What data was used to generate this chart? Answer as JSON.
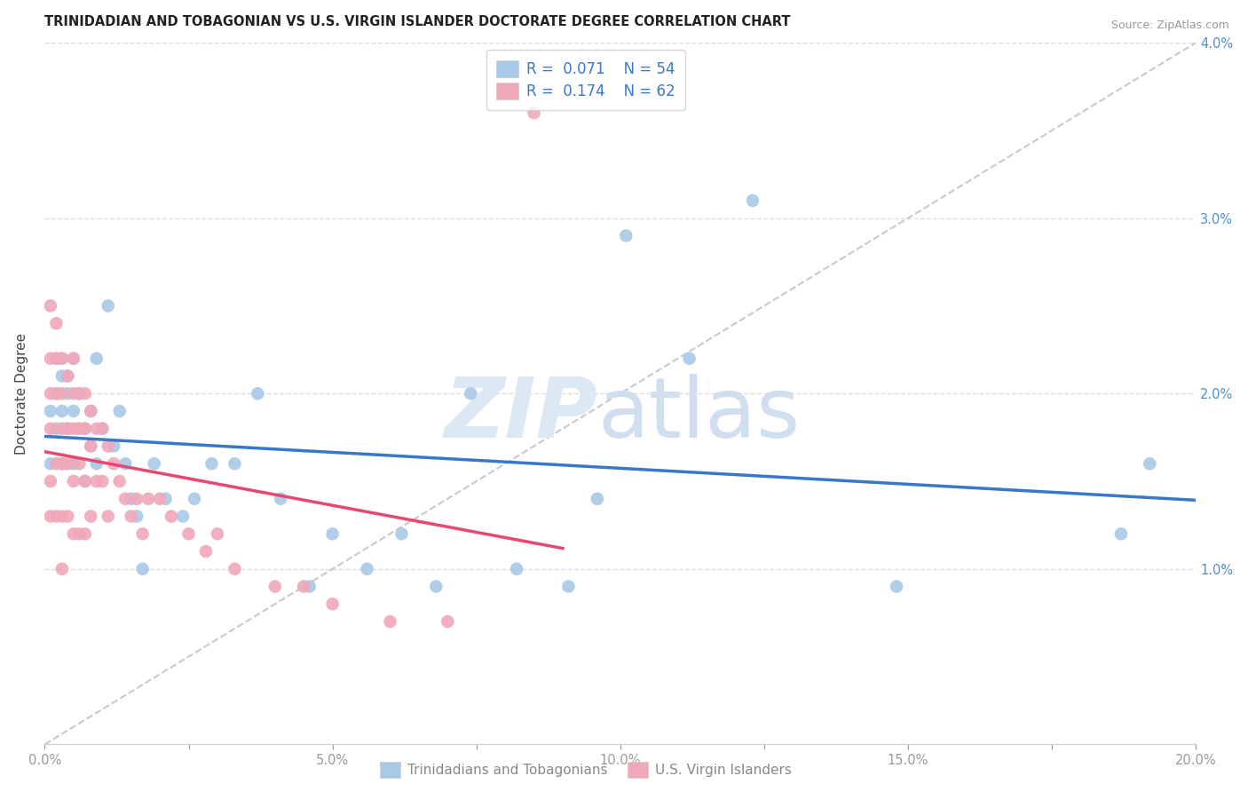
{
  "title": "TRINIDADIAN AND TOBAGONIAN VS U.S. VIRGIN ISLANDER DOCTORATE DEGREE CORRELATION CHART",
  "source": "Source: ZipAtlas.com",
  "ylabel": "Doctorate Degree",
  "xlim": [
    0,
    0.2
  ],
  "ylim": [
    0,
    0.04
  ],
  "xtick_labels": [
    "0.0%",
    "",
    "5.0%",
    "",
    "10.0%",
    "",
    "15.0%",
    "",
    "20.0%"
  ],
  "xtick_vals": [
    0.0,
    0.025,
    0.05,
    0.075,
    0.1,
    0.125,
    0.15,
    0.175,
    0.2
  ],
  "ytick_labels_right": [
    "4.0%",
    "3.0%",
    "2.0%",
    "1.0%",
    ""
  ],
  "ytick_vals": [
    0.04,
    0.03,
    0.02,
    0.01,
    0.0
  ],
  "legend_blue_label": "Trinidadians and Tobagonians",
  "legend_pink_label": "U.S. Virgin Islanders",
  "r_blue": "0.071",
  "n_blue": "54",
  "r_pink": "0.174",
  "n_pink": "62",
  "blue_color": "#A8C8E8",
  "pink_color": "#F0A8B8",
  "blue_line_color": "#3878C8",
  "pink_line_color": "#E84870",
  "dashed_line_color": "#C8C8D0",
  "background_color": "#FFFFFF",
  "blue_scatter_x": [
    0.001,
    0.001,
    0.002,
    0.002,
    0.002,
    0.003,
    0.003,
    0.003,
    0.003,
    0.004,
    0.004,
    0.004,
    0.005,
    0.005,
    0.005,
    0.006,
    0.006,
    0.007,
    0.007,
    0.008,
    0.008,
    0.009,
    0.009,
    0.01,
    0.011,
    0.012,
    0.013,
    0.014,
    0.015,
    0.016,
    0.017,
    0.019,
    0.021,
    0.024,
    0.026,
    0.029,
    0.033,
    0.037,
    0.041,
    0.046,
    0.05,
    0.056,
    0.062,
    0.068,
    0.074,
    0.082,
    0.091,
    0.096,
    0.101,
    0.112,
    0.123,
    0.148,
    0.187,
    0.192
  ],
  "blue_scatter_y": [
    0.016,
    0.019,
    0.02,
    0.018,
    0.022,
    0.021,
    0.019,
    0.016,
    0.022,
    0.021,
    0.018,
    0.02,
    0.019,
    0.016,
    0.022,
    0.02,
    0.018,
    0.018,
    0.015,
    0.019,
    0.017,
    0.022,
    0.016,
    0.018,
    0.025,
    0.017,
    0.019,
    0.016,
    0.014,
    0.013,
    0.01,
    0.016,
    0.014,
    0.013,
    0.014,
    0.016,
    0.016,
    0.02,
    0.014,
    0.009,
    0.012,
    0.01,
    0.012,
    0.009,
    0.02,
    0.01,
    0.009,
    0.014,
    0.029,
    0.022,
    0.031,
    0.009,
    0.012,
    0.016
  ],
  "pink_scatter_x": [
    0.001,
    0.001,
    0.001,
    0.001,
    0.001,
    0.001,
    0.002,
    0.002,
    0.002,
    0.002,
    0.002,
    0.003,
    0.003,
    0.003,
    0.003,
    0.003,
    0.003,
    0.004,
    0.004,
    0.004,
    0.004,
    0.005,
    0.005,
    0.005,
    0.005,
    0.005,
    0.006,
    0.006,
    0.006,
    0.006,
    0.007,
    0.007,
    0.007,
    0.007,
    0.008,
    0.008,
    0.008,
    0.009,
    0.009,
    0.01,
    0.01,
    0.011,
    0.011,
    0.012,
    0.013,
    0.014,
    0.015,
    0.016,
    0.017,
    0.018,
    0.02,
    0.022,
    0.025,
    0.028,
    0.03,
    0.033,
    0.04,
    0.045,
    0.05,
    0.06,
    0.07,
    0.085
  ],
  "pink_scatter_y": [
    0.025,
    0.022,
    0.02,
    0.018,
    0.015,
    0.013,
    0.024,
    0.022,
    0.02,
    0.016,
    0.013,
    0.022,
    0.02,
    0.018,
    0.016,
    0.013,
    0.01,
    0.021,
    0.018,
    0.016,
    0.013,
    0.022,
    0.02,
    0.018,
    0.015,
    0.012,
    0.02,
    0.018,
    0.016,
    0.012,
    0.02,
    0.018,
    0.015,
    0.012,
    0.019,
    0.017,
    0.013,
    0.018,
    0.015,
    0.018,
    0.015,
    0.017,
    0.013,
    0.016,
    0.015,
    0.014,
    0.013,
    0.014,
    0.012,
    0.014,
    0.014,
    0.013,
    0.012,
    0.011,
    0.012,
    0.01,
    0.009,
    0.009,
    0.008,
    0.007,
    0.007,
    0.036
  ]
}
